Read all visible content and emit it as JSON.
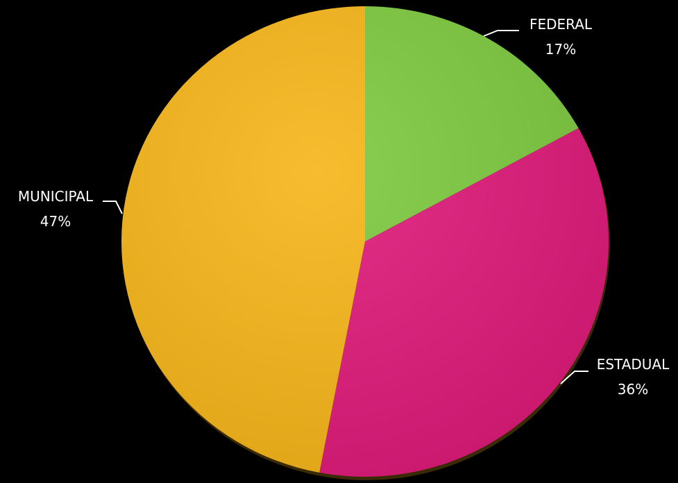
{
  "chart_data": {
    "type": "pie",
    "slices": [
      {
        "label": "FEDERAL",
        "value": 17,
        "value_label": "17%",
        "color": "#7DC93F"
      },
      {
        "label": "ESTADUAL",
        "value": 36,
        "value_label": "36%",
        "color": "#E0197A"
      },
      {
        "label": "MUNICIPAL",
        "value": 47,
        "value_label": "47%",
        "color": "#F7B518"
      }
    ],
    "start_angle": "12 o'clock, clockwise",
    "legend": "none",
    "data_labels": "outside with leader lines",
    "background": "#000000"
  }
}
